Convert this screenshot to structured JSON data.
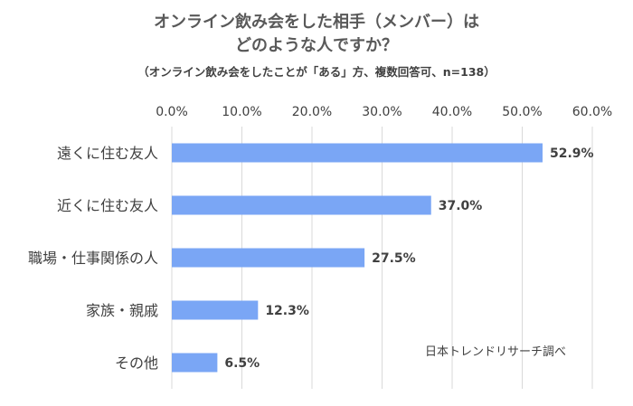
{
  "header": {
    "title_line1": "オンライン飲み会をした相手（メンバー）は",
    "title_line2": "どのような人ですか？",
    "subtitle": "（オンライン飲み会をしたことが「ある」方、複数回答可、n=138）"
  },
  "credit": "日本トレンドリサーチ調べ",
  "colors": {
    "bar": "#7aa6f5",
    "grid": "#d9d9d9",
    "text": "#404040"
  },
  "chart_data": {
    "type": "bar",
    "orientation": "horizontal",
    "categories": [
      "遠くに住む友人",
      "近くに住む友人",
      "職場・仕事関係の人",
      "家族・親戚",
      "その他"
    ],
    "values": [
      52.9,
      37.0,
      27.5,
      12.3,
      6.5
    ],
    "value_labels": [
      "52.9%",
      "37.0%",
      "27.5%",
      "12.3%",
      "6.5%"
    ],
    "tick_labels": [
      "0.0%",
      "10.0%",
      "20.0%",
      "30.0%",
      "40.0%",
      "50.0%",
      "60.0%"
    ],
    "xlim": [
      0,
      60
    ],
    "grid": true,
    "axis_position": "top"
  }
}
